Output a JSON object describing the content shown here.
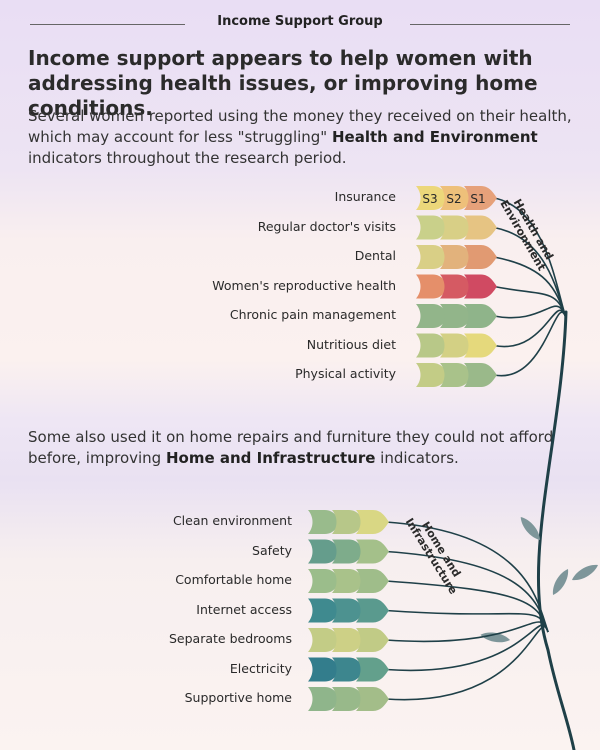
{
  "header": {
    "title": "Income Support Group"
  },
  "headline": "Income support appears to help women with addressing health issues, or improving home conditions.",
  "intro": {
    "text1": "Several women reported using the money they received on their health, which may account for less \"struggling\" ",
    "bold1": "Health and Environment",
    "text2": " indicators throughout the research period."
  },
  "second": {
    "text1": "Some also used it on home repairs and furniture they could not afford before, improving ",
    "bold1": "Home and Infrastructure",
    "text2": " indicators."
  },
  "health": {
    "group_label_line1": "Health and",
    "group_label_line2": "Environment",
    "survey_labels": [
      "S3",
      "S2",
      "S1"
    ],
    "rows": [
      {
        "label": "Insurance",
        "colors": [
          "#ecd77a",
          "#eec07a",
          "#e6a17a"
        ]
      },
      {
        "label": "Regular doctor's visits",
        "colors": [
          "#c9d08a",
          "#d8cf86",
          "#e6c483"
        ]
      },
      {
        "label": "Dental",
        "colors": [
          "#d9cf86",
          "#e2b27c",
          "#e19a72"
        ]
      },
      {
        "label": "Women's reproductive health",
        "colors": [
          "#e58f6a",
          "#d55a63",
          "#d04a62"
        ]
      },
      {
        "label": "Chronic pain management",
        "colors": [
          "#92b58a",
          "#92b58a",
          "#8fb48a"
        ]
      },
      {
        "label": "Nutritious diet",
        "colors": [
          "#b8c888",
          "#d3d084",
          "#e5d97c"
        ]
      },
      {
        "label": "Physical activity",
        "colors": [
          "#c3cc86",
          "#a9c28a",
          "#9ab98a"
        ]
      }
    ]
  },
  "home": {
    "group_label_line1": "Home and",
    "group_label_line2": "Infrastructure",
    "rows": [
      {
        "label": "Clean environment",
        "colors": [
          "#99bb8c",
          "#b7c789",
          "#d9d784"
        ]
      },
      {
        "label": "Safety",
        "colors": [
          "#659d8c",
          "#7eac8b",
          "#a4c08a"
        ]
      },
      {
        "label": "Comfortable home",
        "colors": [
          "#9bbd8b",
          "#a9c28a",
          "#9fbd8a"
        ]
      },
      {
        "label": "Internet access",
        "colors": [
          "#3f8a8f",
          "#4d9290",
          "#5a9a8e"
        ]
      },
      {
        "label": "Separate bedrooms",
        "colors": [
          "#c3cc86",
          "#cdd086",
          "#c1cb86"
        ]
      },
      {
        "label": "Electricity",
        "colors": [
          "#337d8c",
          "#3d868e",
          "#63a08c"
        ]
      },
      {
        "label": "Supportive home",
        "colors": [
          "#8fb58b",
          "#98b98a",
          "#a3bd89"
        ]
      }
    ]
  },
  "colors": {
    "stem": "#1f4048",
    "leaf": "#7e969a"
  }
}
